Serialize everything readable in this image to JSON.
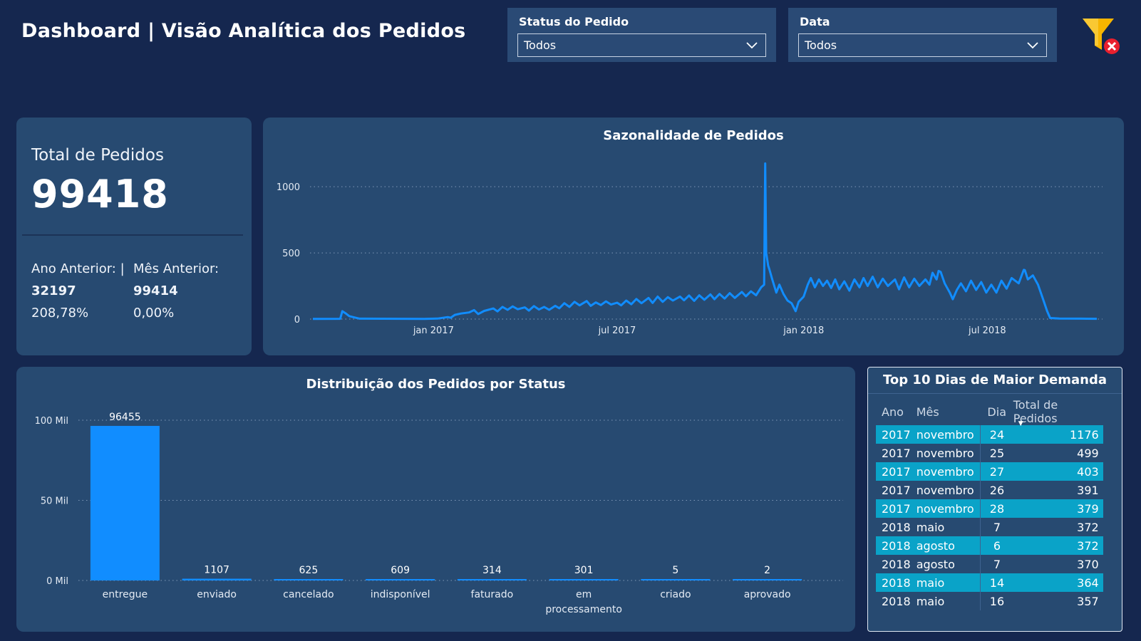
{
  "page": {
    "title": "Dashboard | Visão Analítica dos Pedidos"
  },
  "filters": {
    "status": {
      "label": "Status do Pedido",
      "value": "Todos"
    },
    "date": {
      "label": "Data",
      "value": "Todos"
    },
    "clear_icon": "clear-filter-icon"
  },
  "kpi": {
    "label": "Total de Pedidos",
    "value": "99418",
    "prev_year": {
      "label": "Ano Anterior: |",
      "value": "32197",
      "pct": "208,78%"
    },
    "prev_month": {
      "label": "Mês Anterior:",
      "value": "99414",
      "pct": "0,00%"
    }
  },
  "seasonality": {
    "title": "Sazonalidade de Pedidos",
    "chart_data": {
      "type": "line",
      "title": "Sazonalidade de Pedidos",
      "x_tick_labels": [
        "jan 2017",
        "jul 2017",
        "jan 2018",
        "jul 2018"
      ],
      "y_tick_labels": [
        "0",
        "500",
        "1000"
      ],
      "ylim": [
        0,
        1200
      ],
      "color": "#118dff",
      "grid": "horizontal-dotted",
      "points": [
        [
          "2016-09-04",
          1
        ],
        [
          "2016-10-01",
          2
        ],
        [
          "2016-10-03",
          60
        ],
        [
          "2016-10-06",
          45
        ],
        [
          "2016-10-10",
          22
        ],
        [
          "2016-10-20",
          3
        ],
        [
          "2016-12-01",
          2
        ],
        [
          "2016-12-23",
          1
        ],
        [
          "2017-01-05",
          4
        ],
        [
          "2017-01-15",
          15
        ],
        [
          "2017-01-18",
          10
        ],
        [
          "2017-01-22",
          32
        ],
        [
          "2017-01-28",
          42
        ],
        [
          "2017-02-05",
          50
        ],
        [
          "2017-02-10",
          68
        ],
        [
          "2017-02-14",
          38
        ],
        [
          "2017-02-20",
          62
        ],
        [
          "2017-03-01",
          80
        ],
        [
          "2017-03-05",
          58
        ],
        [
          "2017-03-10",
          92
        ],
        [
          "2017-03-15",
          70
        ],
        [
          "2017-03-20",
          96
        ],
        [
          "2017-03-25",
          74
        ],
        [
          "2017-04-01",
          88
        ],
        [
          "2017-04-05",
          64
        ],
        [
          "2017-04-10",
          98
        ],
        [
          "2017-04-15",
          72
        ],
        [
          "2017-04-20",
          92
        ],
        [
          "2017-04-25",
          70
        ],
        [
          "2017-05-01",
          100
        ],
        [
          "2017-05-05",
          82
        ],
        [
          "2017-05-10",
          120
        ],
        [
          "2017-05-15",
          92
        ],
        [
          "2017-05-20",
          130
        ],
        [
          "2017-05-25",
          104
        ],
        [
          "2017-06-01",
          136
        ],
        [
          "2017-06-05",
          100
        ],
        [
          "2017-06-10",
          126
        ],
        [
          "2017-06-15",
          106
        ],
        [
          "2017-06-20",
          134
        ],
        [
          "2017-06-25",
          110
        ],
        [
          "2017-07-01",
          124
        ],
        [
          "2017-07-05",
          104
        ],
        [
          "2017-07-10",
          140
        ],
        [
          "2017-07-15",
          112
        ],
        [
          "2017-07-20",
          152
        ],
        [
          "2017-07-25",
          120
        ],
        [
          "2017-08-01",
          160
        ],
        [
          "2017-08-05",
          122
        ],
        [
          "2017-08-10",
          170
        ],
        [
          "2017-08-15",
          130
        ],
        [
          "2017-08-20",
          166
        ],
        [
          "2017-08-25",
          140
        ],
        [
          "2017-09-01",
          170
        ],
        [
          "2017-09-05",
          142
        ],
        [
          "2017-09-10",
          178
        ],
        [
          "2017-09-15",
          138
        ],
        [
          "2017-09-20",
          180
        ],
        [
          "2017-09-25",
          146
        ],
        [
          "2017-10-01",
          186
        ],
        [
          "2017-10-05",
          150
        ],
        [
          "2017-10-10",
          190
        ],
        [
          "2017-10-15",
          155
        ],
        [
          "2017-10-20",
          196
        ],
        [
          "2017-10-25",
          160
        ],
        [
          "2017-11-01",
          205
        ],
        [
          "2017-11-05",
          172
        ],
        [
          "2017-11-10",
          210
        ],
        [
          "2017-11-15",
          180
        ],
        [
          "2017-11-20",
          240
        ],
        [
          "2017-11-23",
          260
        ],
        [
          "2017-11-24",
          1176
        ],
        [
          "2017-11-25",
          499
        ],
        [
          "2017-11-27",
          403
        ],
        [
          "2017-11-28",
          379
        ],
        [
          "2017-12-01",
          300
        ],
        [
          "2017-12-05",
          200
        ],
        [
          "2017-12-08",
          260
        ],
        [
          "2017-12-12",
          190
        ],
        [
          "2017-12-16",
          140
        ],
        [
          "2017-12-20",
          120
        ],
        [
          "2017-12-24",
          60
        ],
        [
          "2017-12-27",
          130
        ],
        [
          "2018-01-01",
          170
        ],
        [
          "2018-01-05",
          260
        ],
        [
          "2018-01-08",
          310
        ],
        [
          "2018-01-12",
          240
        ],
        [
          "2018-01-16",
          300
        ],
        [
          "2018-01-20",
          250
        ],
        [
          "2018-01-24",
          290
        ],
        [
          "2018-01-28",
          235
        ],
        [
          "2018-02-01",
          300
        ],
        [
          "2018-02-05",
          225
        ],
        [
          "2018-02-10",
          285
        ],
        [
          "2018-02-15",
          215
        ],
        [
          "2018-02-20",
          300
        ],
        [
          "2018-02-25",
          240
        ],
        [
          "2018-03-01",
          310
        ],
        [
          "2018-03-05",
          250
        ],
        [
          "2018-03-10",
          320
        ],
        [
          "2018-03-15",
          240
        ],
        [
          "2018-03-20",
          305
        ],
        [
          "2018-03-25",
          250
        ],
        [
          "2018-04-01",
          300
        ],
        [
          "2018-04-05",
          225
        ],
        [
          "2018-04-10",
          315
        ],
        [
          "2018-04-15",
          240
        ],
        [
          "2018-04-20",
          305
        ],
        [
          "2018-04-25",
          250
        ],
        [
          "2018-05-01",
          300
        ],
        [
          "2018-05-05",
          260
        ],
        [
          "2018-05-08",
          350
        ],
        [
          "2018-05-12",
          300
        ],
        [
          "2018-05-14",
          364
        ],
        [
          "2018-05-16",
          357
        ],
        [
          "2018-05-20",
          270
        ],
        [
          "2018-05-25",
          200
        ],
        [
          "2018-05-28",
          150
        ],
        [
          "2018-06-01",
          220
        ],
        [
          "2018-06-05",
          270
        ],
        [
          "2018-06-10",
          210
        ],
        [
          "2018-06-15",
          290
        ],
        [
          "2018-06-20",
          220
        ],
        [
          "2018-06-25",
          280
        ],
        [
          "2018-06-30",
          200
        ],
        [
          "2018-07-05",
          260
        ],
        [
          "2018-07-10",
          200
        ],
        [
          "2018-07-15",
          290
        ],
        [
          "2018-07-20",
          230
        ],
        [
          "2018-07-25",
          310
        ],
        [
          "2018-08-01",
          270
        ],
        [
          "2018-08-06",
          372
        ],
        [
          "2018-08-07",
          370
        ],
        [
          "2018-08-10",
          300
        ],
        [
          "2018-08-15",
          330
        ],
        [
          "2018-08-20",
          260
        ],
        [
          "2018-08-25",
          150
        ],
        [
          "2018-08-29",
          60
        ],
        [
          "2018-09-01",
          8
        ],
        [
          "2018-09-10",
          4
        ],
        [
          "2018-10-01",
          3
        ],
        [
          "2018-10-17",
          2
        ]
      ]
    }
  },
  "status_distribution": {
    "title": "Distribuição dos Pedidos por Status",
    "chart_data": {
      "type": "bar",
      "title": "Distribuição dos Pedidos por Status",
      "categories": [
        "entregue",
        "enviado",
        "cancelado",
        "indisponível",
        "faturado",
        "em processamento",
        "criado",
        "aprovado"
      ],
      "values": [
        96455,
        1107,
        625,
        609,
        314,
        301,
        5,
        2
      ],
      "data_labels": [
        "96455",
        "1107",
        "625",
        "609",
        "314",
        "301",
        "5",
        "2"
      ],
      "y_tick_labels": [
        "0 Mil",
        "50 Mil",
        "100 Mil"
      ],
      "ylim": [
        0,
        100000
      ],
      "color": "#118dff",
      "grid": "horizontal-dotted"
    }
  },
  "top10": {
    "title": "Top 10 Dias de Maior Demanda",
    "columns": [
      "Ano",
      "Mês",
      "Dia",
      "Total de Pedidos"
    ],
    "sort_icon": "sort-desc-icon",
    "rows": [
      [
        "2017",
        "novembro",
        "24",
        "1176"
      ],
      [
        "2017",
        "novembro",
        "25",
        "499"
      ],
      [
        "2017",
        "novembro",
        "27",
        "403"
      ],
      [
        "2017",
        "novembro",
        "26",
        "391"
      ],
      [
        "2017",
        "novembro",
        "28",
        "379"
      ],
      [
        "2018",
        "maio",
        "7",
        "372"
      ],
      [
        "2018",
        "agosto",
        "6",
        "372"
      ],
      [
        "2018",
        "agosto",
        "7",
        "370"
      ],
      [
        "2018",
        "maio",
        "14",
        "364"
      ],
      [
        "2018",
        "maio",
        "16",
        "357"
      ]
    ],
    "highlight_color": "#0aa3c8"
  }
}
